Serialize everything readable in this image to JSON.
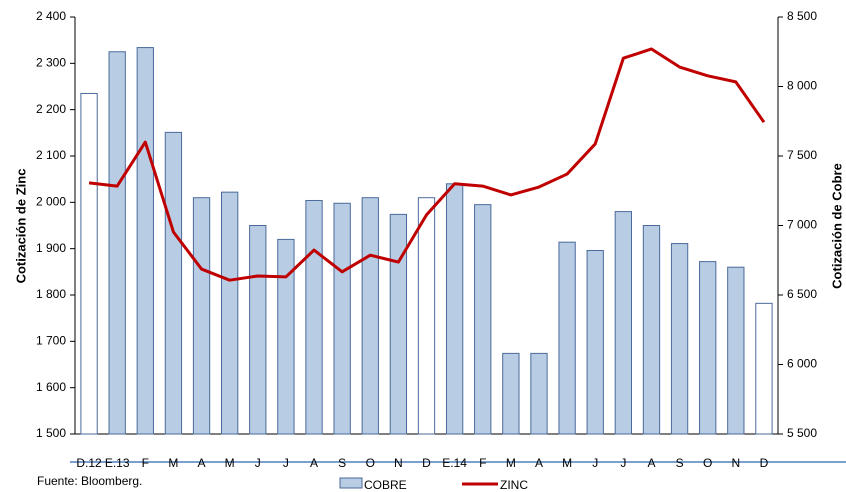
{
  "chart_data": {
    "type": "bar_line",
    "categories": [
      "D.12",
      "E.13",
      "F",
      "M",
      "A",
      "M",
      "J",
      "J",
      "A",
      "S",
      "O",
      "N",
      "D",
      "E.14",
      "F",
      "M",
      "A",
      "M",
      "J",
      "J",
      "A",
      "S",
      "O",
      "N",
      "D"
    ],
    "series": [
      {
        "name": "COBRE",
        "type": "bar",
        "axis": "y2",
        "color": "#b8cce4",
        "edge_color": "#4a6a9a",
        "bar_colors": [
          "#ffffff",
          "#b8cce4",
          "#b8cce4",
          "#b8cce4",
          "#b8cce4",
          "#b8cce4",
          "#b8cce4",
          "#b8cce4",
          "#b8cce4",
          "#b8cce4",
          "#b8cce4",
          "#b8cce4",
          "#ffffff",
          "#b8cce4",
          "#b8cce4",
          "#b8cce4",
          "#b8cce4",
          "#b8cce4",
          "#b8cce4",
          "#b8cce4",
          "#b8cce4",
          "#b8cce4",
          "#b8cce4",
          "#b8cce4",
          "#ffffff"
        ],
        "values": [
          7950,
          8250,
          8280,
          7670,
          7200,
          7240,
          7000,
          6900,
          7180,
          7160,
          7200,
          7080,
          7200,
          7300,
          7150,
          6080,
          6080,
          6880,
          6820,
          7100,
          7000,
          6870,
          6740,
          6700,
          6440
        ]
      },
      {
        "name": "ZINC",
        "type": "line",
        "axis": "y",
        "color": "#c00000",
        "values": [
          2042,
          2035,
          2130,
          1936,
          1856,
          1832,
          1841,
          1839,
          1897,
          1850,
          1886,
          1871,
          1973,
          2040,
          2035,
          2016,
          2033,
          2061,
          2126,
          2311,
          2331,
          2292,
          2273,
          2260,
          2173
        ]
      }
    ],
    "ylabel": "Cotización de Zinc",
    "y2label": "Cotización de Cobre",
    "ylim": [
      1500,
      2400
    ],
    "yticks": [
      {
        "value": 1500,
        "label": "1 500"
      },
      {
        "value": 1600,
        "label": "1 600"
      },
      {
        "value": 1700,
        "label": "1 700"
      },
      {
        "value": 1800,
        "label": "1 800"
      },
      {
        "value": 1900,
        "label": "1 900"
      },
      {
        "value": 2000,
        "label": "2 000"
      },
      {
        "value": 2100,
        "label": "2 100"
      },
      {
        "value": 2200,
        "label": "2 200"
      },
      {
        "value": 2300,
        "label": "2 300"
      },
      {
        "value": 2400,
        "label": "2 400"
      }
    ],
    "y2lim": [
      5500,
      8500
    ],
    "y2ticks": [
      {
        "value": 5500,
        "label": "5 500"
      },
      {
        "value": 6000,
        "label": "6 000"
      },
      {
        "value": 6500,
        "label": "6 500"
      },
      {
        "value": 7000,
        "label": "7 000"
      },
      {
        "value": 7500,
        "label": "7 500"
      },
      {
        "value": 8000,
        "label": "8 000"
      },
      {
        "value": 8500,
        "label": "8 500"
      }
    ],
    "source": "Fuente: Bloomberg."
  }
}
